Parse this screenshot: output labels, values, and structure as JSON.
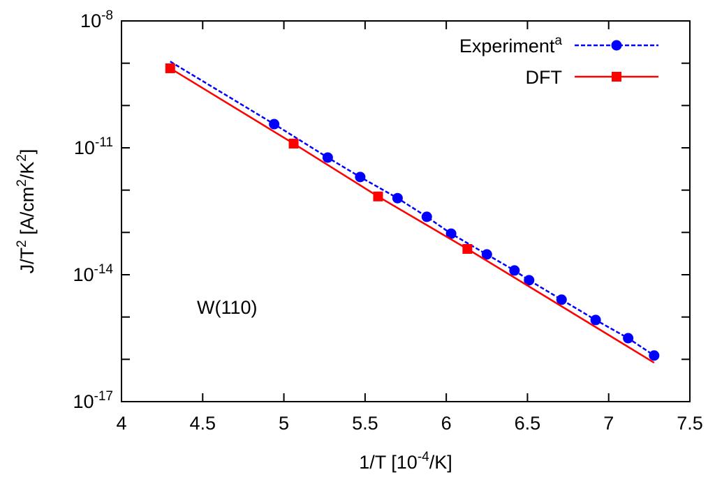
{
  "chart_data": {
    "type": "line",
    "title": "",
    "xlabel": "1/T [10^-4/K]",
    "xlabel_parts": {
      "base": "1/T [10",
      "sup": "-4",
      "tail": "/K]"
    },
    "ylabel_parts": {
      "a": "J/T",
      "sup1": "2",
      "b": " [A/cm",
      "sup2": "2",
      "c": "/K",
      "sup3": "2",
      "d": "]"
    },
    "xlim": [
      4,
      7.5
    ],
    "ylim_log10": [
      -17,
      -8
    ],
    "y_scale": "log",
    "x_ticks": [
      "4",
      "4.5",
      "5",
      "5.5",
      "6",
      "6.5",
      "7",
      "7.5"
    ],
    "y_tick_labels": [
      {
        "exp": -8,
        "base": "10",
        "sup": "-8"
      },
      {
        "exp": -11,
        "base": "10",
        "sup": "-11"
      },
      {
        "exp": -14,
        "base": "10",
        "sup": "-14"
      },
      {
        "exp": -17,
        "base": "10",
        "sup": "-17"
      }
    ],
    "grid": false,
    "legend_position": "top-right",
    "annotation": "W(110)",
    "series": [
      {
        "name": "Experiment",
        "name_sup": "a",
        "color": "#0000ff",
        "line_style": "dashed",
        "marker": "circle",
        "line_from": [
          4.3,
          -8.96
        ],
        "x": [
          4.94,
          5.27,
          5.47,
          5.7,
          5.88,
          6.03,
          6.25,
          6.42,
          6.51,
          6.71,
          6.92,
          7.12,
          7.28
        ],
        "log10_y": [
          -10.44,
          -11.23,
          -11.69,
          -12.19,
          -12.63,
          -13.03,
          -13.52,
          -13.9,
          -14.13,
          -14.59,
          -15.07,
          -15.5,
          -15.91
        ]
      },
      {
        "name": "DFT",
        "color": "#ff0000",
        "line_style": "solid",
        "marker": "square",
        "line_to": [
          7.28,
          -16.08
        ],
        "x": [
          4.3,
          5.06,
          5.58,
          6.13
        ],
        "log10_y": [
          -9.12,
          -10.9,
          -12.15,
          -13.39
        ]
      }
    ]
  }
}
